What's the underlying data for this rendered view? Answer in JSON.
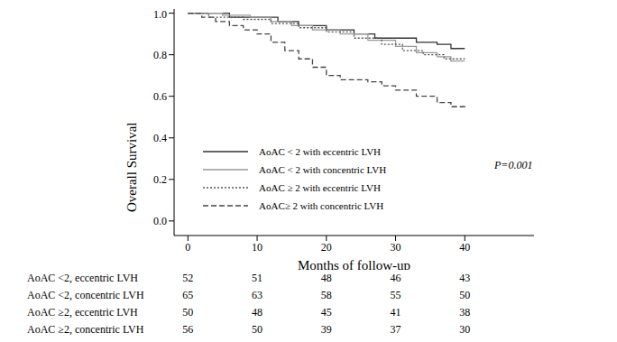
{
  "chart_data": {
    "type": "line",
    "x_label": "Months of follow-up",
    "y_label": "Overall Survival",
    "xlim": [
      -2,
      50
    ],
    "xticks": [
      0,
      10,
      20,
      30,
      40
    ],
    "ylim": [
      -0.07,
      1.02
    ],
    "yticks": [
      {
        "value": 0,
        "label": "0.0"
      },
      {
        "value": 0.2,
        "label": "0.2"
      },
      {
        "value": 0.4,
        "label": "0.4"
      },
      {
        "value": 0.6,
        "label": "0.6"
      },
      {
        "value": 0.8,
        "label": "0.8"
      },
      {
        "value": 1.0,
        "label": "1.0"
      }
    ],
    "annotations": [
      "P=0.001"
    ],
    "series": [
      {
        "name": "AoAC < 2 with eccentric LVH",
        "color": "#333333",
        "line_style": "solid",
        "x": [
          0,
          6,
          13,
          16,
          20,
          24,
          27,
          33,
          36,
          38,
          40
        ],
        "values": [
          1.0,
          0.98,
          0.96,
          0.94,
          0.92,
          0.9,
          0.88,
          0.86,
          0.85,
          0.83,
          0.83
        ]
      },
      {
        "name": "AoAC < 2 with concentric LVH",
        "color": "#999999",
        "line_style": "solid",
        "x": [
          0,
          5,
          9,
          12,
          15,
          18,
          22,
          26,
          30,
          33,
          36,
          38,
          40
        ],
        "values": [
          1.0,
          0.99,
          0.98,
          0.96,
          0.94,
          0.92,
          0.9,
          0.87,
          0.84,
          0.81,
          0.79,
          0.77,
          0.77
        ]
      },
      {
        "name": "AoAC ≥ 2 with eccentric LVH",
        "color": "#555555",
        "line_style": "dotted",
        "x": [
          0,
          3,
          8,
          12,
          16,
          20,
          24,
          28,
          31,
          34,
          37,
          40
        ],
        "values": [
          1.0,
          0.98,
          0.97,
          0.95,
          0.93,
          0.91,
          0.88,
          0.85,
          0.82,
          0.8,
          0.78,
          0.78
        ]
      },
      {
        "name": "AoAC≥ 2 with concentric LVH",
        "color": "#444444",
        "line_style": "dashed",
        "x": [
          0,
          2,
          4,
          6,
          8,
          10,
          12,
          14,
          16,
          18,
          20,
          22,
          26,
          28,
          30,
          33,
          36,
          38,
          40
        ],
        "values": [
          1.0,
          0.98,
          0.96,
          0.94,
          0.92,
          0.9,
          0.86,
          0.82,
          0.78,
          0.74,
          0.7,
          0.68,
          0.67,
          0.65,
          0.63,
          0.6,
          0.57,
          0.55,
          0.54
        ]
      }
    ],
    "risk_table": [
      {
        "label": "AoAC <2, eccentric LVH",
        "counts": [
          52,
          51,
          48,
          46,
          43
        ]
      },
      {
        "label": "AoAC <2, concentric LVH",
        "counts": [
          65,
          63,
          58,
          55,
          50
        ]
      },
      {
        "label": "AoAC ≥2, eccentric LVH",
        "counts": [
          50,
          48,
          45,
          41,
          38
        ]
      },
      {
        "label": "AoAC ≥2, concentric LVH",
        "counts": [
          56,
          50,
          39,
          37,
          30
        ]
      }
    ]
  }
}
